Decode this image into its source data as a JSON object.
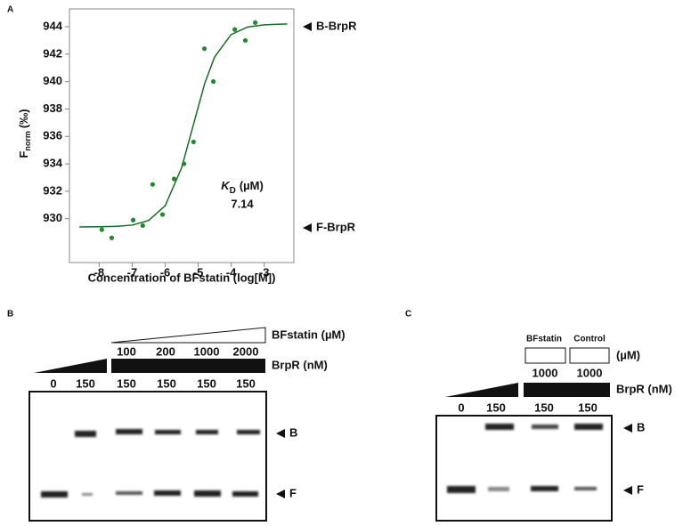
{
  "chart_data": {
    "type": "scatter",
    "panel_label": "A",
    "x_label": "Concentration of BFstatin (log[M])",
    "y_label": {
      "main": "F",
      "sub": "norm",
      "unit": "(‰)"
    },
    "kd_label": {
      "main": "K",
      "sub": "D",
      "unit": "(µM)",
      "value": "7.14"
    },
    "annotations": [
      "B-BrpR",
      "F-BrpR"
    ],
    "xlim": [
      -8.9,
      -2.1
    ],
    "ylim": [
      926.8,
      945.3
    ],
    "xticks": [
      -8,
      -7,
      -6,
      -5,
      -4,
      -3
    ],
    "yticks": [
      930,
      932,
      934,
      936,
      938,
      940,
      942,
      944
    ],
    "series": [
      {
        "color": "#1e8a2e",
        "x": [
          -7.92,
          -7.62,
          -6.97,
          -6.68,
          -6.38,
          -6.08,
          -5.73,
          -5.43,
          -5.14,
          -4.81,
          -4.54,
          -3.89,
          -3.57,
          -3.27
        ],
        "values": [
          929.2,
          928.6,
          929.9,
          929.5,
          932.5,
          930.3,
          932.9,
          934.0,
          935.6,
          942.4,
          940.0,
          943.8,
          943.0,
          944.3
        ]
      },
      {
        "color": "#1a6b25",
        "x": [
          -8.6,
          -8,
          -7.5,
          -7,
          -6.5,
          -6,
          -5.5,
          -5.15,
          -4.8,
          -4.5,
          -4,
          -3.5,
          -3,
          -2.5,
          -2.3
        ],
        "values": [
          929.4,
          929.41,
          929.44,
          929.53,
          929.87,
          930.94,
          933.72,
          936.8,
          939.88,
          941.8,
          943.43,
          943.98,
          944.14,
          944.19,
          944.2
        ]
      }
    ]
  },
  "panel_b": {
    "label": "B",
    "compound": "BFstatin (µM)",
    "doses": [
      "100",
      "200",
      "1000",
      "2000"
    ],
    "protein": "BrpR (nM)",
    "lanes": [
      "0",
      "150",
      "150",
      "150",
      "150",
      "150"
    ],
    "bands": [
      "B",
      "F"
    ]
  },
  "panel_c": {
    "label": "C",
    "treatments": [
      "BFstatin",
      "Control"
    ],
    "unit": "(µM)",
    "doses": [
      "1000",
      "1000"
    ],
    "protein": "BrpR (nM)",
    "lanes": [
      "0",
      "150",
      "150",
      "150"
    ],
    "bands": [
      "B",
      "F"
    ]
  }
}
